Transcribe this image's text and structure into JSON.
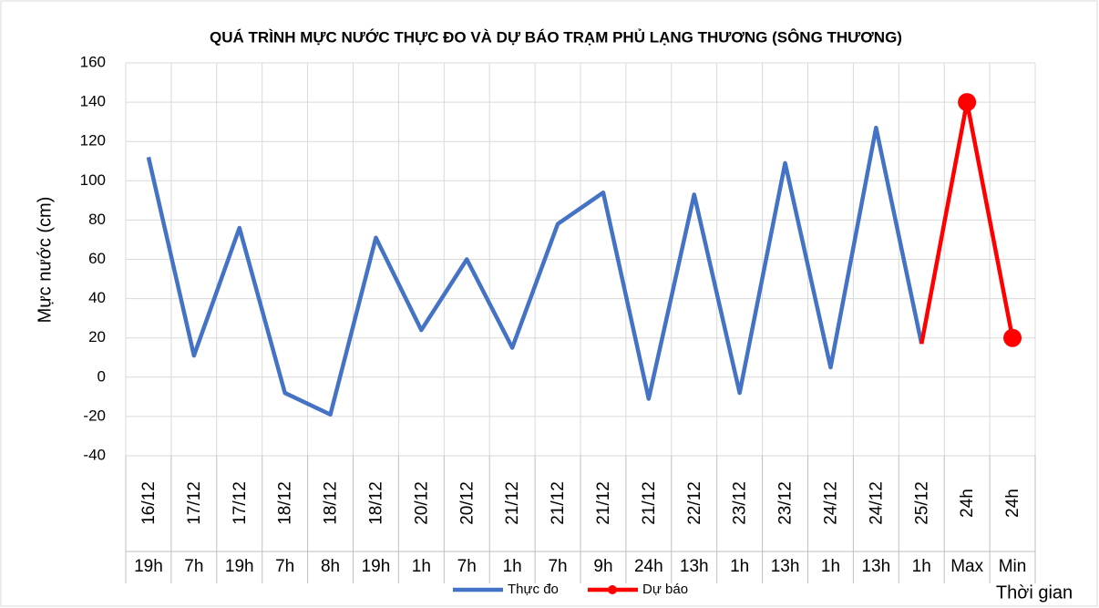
{
  "chart_data": {
    "type": "line",
    "title": "QUÁ TRÌNH MỰC NƯỚC THỰC ĐO VÀ DỰ BÁO TRẠM PHỦ LẠNG THƯƠNG (SÔNG THƯƠNG)",
    "y_label": "Mực nước (cm)",
    "x_label": "Thời gian",
    "categories": [
      "16/12",
      "17/12",
      "17/12",
      "18/12",
      "18/12",
      "18/12",
      "20/12",
      "20/12",
      "21/12",
      "21/12",
      "21/12",
      "21/12",
      "22/12",
      "23/12",
      "23/12",
      "24/12",
      "24/12",
      "25/12",
      "24h",
      "24h"
    ],
    "category_times": [
      "19h",
      "7h",
      "19h",
      "7h",
      "8h",
      "19h",
      "1h",
      "7h",
      "1h",
      "7h",
      "9h",
      "24h",
      "13h",
      "1h",
      "13h",
      "1h",
      "13h",
      "1h",
      "Max",
      "Min"
    ],
    "series": [
      {
        "name": "Thực đo",
        "color": "#4472c4",
        "markers": false,
        "values": [
          112,
          11,
          76,
          -8,
          -19,
          71,
          24,
          60,
          15,
          78,
          94,
          -11,
          93,
          -8,
          109,
          5,
          127,
          17,
          null,
          null
        ]
      },
      {
        "name": "Dự báo",
        "color": "#ff0000",
        "markers": true,
        "values": [
          null,
          null,
          null,
          null,
          null,
          null,
          null,
          null,
          null,
          null,
          null,
          null,
          null,
          null,
          null,
          null,
          null,
          17,
          140,
          20
        ]
      }
    ],
    "ylim": [
      -40,
      160
    ],
    "yticks": [
      -40,
      -20,
      0,
      20,
      40,
      60,
      80,
      100,
      120,
      140,
      160
    ],
    "grid": true,
    "legend": "bottom"
  }
}
